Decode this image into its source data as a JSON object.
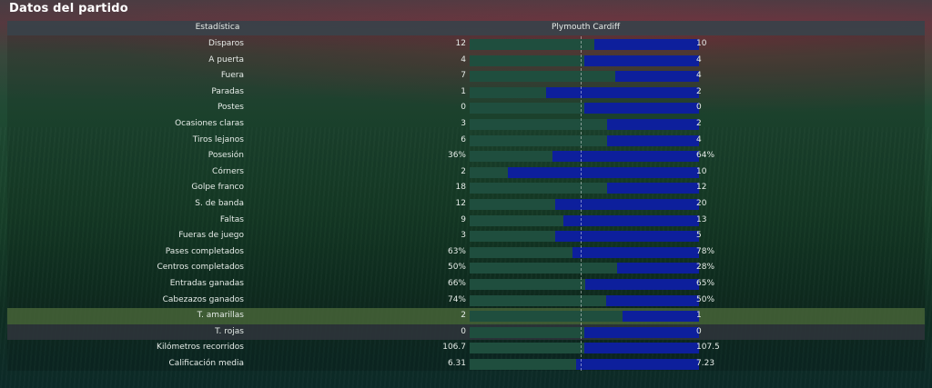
{
  "title": "Datos del partido",
  "header": {
    "stat": "Estadística",
    "teams": "Plymouth Cardiff"
  },
  "colors": {
    "home_bar": "#1f4e3e",
    "away_bar": "#0d1f9c"
  },
  "stats": [
    {
      "label": "Disparos",
      "home": "12",
      "away": "10",
      "home_val": 12,
      "away_val": 10
    },
    {
      "label": "A puerta",
      "home": "4",
      "away": "4",
      "home_val": 4,
      "away_val": 4
    },
    {
      "label": "Fuera",
      "home": "7",
      "away": "4",
      "home_val": 7,
      "away_val": 4
    },
    {
      "label": "Paradas",
      "home": "1",
      "away": "2",
      "home_val": 1,
      "away_val": 2
    },
    {
      "label": "Postes",
      "home": "0",
      "away": "0",
      "home_val": 0,
      "away_val": 0
    },
    {
      "label": "Ocasiones claras",
      "home": "3",
      "away": "2",
      "home_val": 3,
      "away_val": 2
    },
    {
      "label": "Tiros lejanos",
      "home": "6",
      "away": "4",
      "home_val": 6,
      "away_val": 4
    },
    {
      "label": "Posesión",
      "home": "36%",
      "away": "64%",
      "home_val": 36,
      "away_val": 64
    },
    {
      "label": "Córners",
      "home": "2",
      "away": "10",
      "home_val": 2,
      "away_val": 10
    },
    {
      "label": "Golpe franco",
      "home": "18",
      "away": "12",
      "home_val": 18,
      "away_val": 12
    },
    {
      "label": "S. de banda",
      "home": "12",
      "away": "20",
      "home_val": 12,
      "away_val": 20
    },
    {
      "label": "Faltas",
      "home": "9",
      "away": "13",
      "home_val": 9,
      "away_val": 13
    },
    {
      "label": "Fueras de juego",
      "home": "3",
      "away": "5",
      "home_val": 3,
      "away_val": 5
    },
    {
      "label": "Pases completados",
      "home": "63%",
      "away": "78%",
      "home_val": 63,
      "away_val": 78
    },
    {
      "label": "Centros completados",
      "home": "50%",
      "away": "28%",
      "home_val": 50,
      "away_val": 28
    },
    {
      "label": "Entradas ganadas",
      "home": "66%",
      "away": "65%",
      "home_val": 66,
      "away_val": 65
    },
    {
      "label": "Cabezazos ganados",
      "home": "74%",
      "away": "50%",
      "home_val": 74,
      "away_val": 50
    },
    {
      "label": "T. amarillas",
      "home": "2",
      "away": "1",
      "home_val": 2,
      "away_val": 1,
      "highlight": "green"
    },
    {
      "label": "T. rojas",
      "home": "0",
      "away": "0",
      "home_val": 0,
      "away_val": 0,
      "highlight": "gray"
    },
    {
      "label": "Kilómetros recorridos",
      "home": "106.7",
      "away": "107.5",
      "home_val": 106.7,
      "away_val": 107.5
    },
    {
      "label": "Calificación media",
      "home": "6.31",
      "away": "7.23",
      "home_val": 6.31,
      "away_val": 7.23
    }
  ]
}
